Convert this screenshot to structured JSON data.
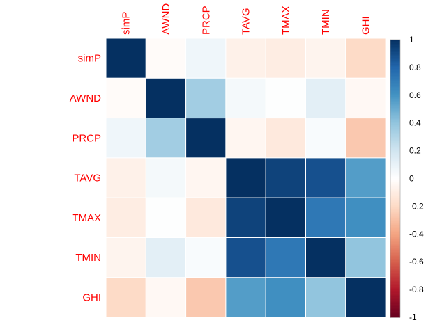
{
  "chart_data": {
    "type": "heatmap",
    "variables": [
      "simP",
      "AWND",
      "PRCP",
      "TAVG",
      "TMAX",
      "TMIN",
      "GHI"
    ],
    "matrix": [
      [
        1.0,
        -0.02,
        0.07,
        -0.08,
        -0.1,
        -0.06,
        -0.2
      ],
      [
        -0.02,
        1.0,
        0.35,
        0.05,
        0.01,
        0.12,
        -0.04
      ],
      [
        0.07,
        0.35,
        1.0,
        -0.05,
        -0.12,
        0.03,
        -0.27
      ],
      [
        -0.08,
        0.05,
        -0.05,
        1.0,
        0.93,
        0.88,
        0.56
      ],
      [
        -0.1,
        0.01,
        -0.12,
        0.93,
        1.0,
        0.72,
        0.62
      ],
      [
        -0.06,
        0.12,
        0.03,
        0.88,
        0.72,
        1.0,
        0.4
      ],
      [
        -0.2,
        -0.04,
        -0.27,
        0.56,
        0.62,
        0.4,
        1.0
      ]
    ],
    "colorbar": {
      "range": [
        -1,
        1
      ],
      "ticks": [
        "-1",
        "-0.8",
        "-0.6",
        "-0.4",
        "-0.2",
        "0",
        "0.2",
        "0.4",
        "0.6",
        "0.8",
        "1"
      ]
    },
    "label_color": "#ff0000",
    "grid": "white cell borders",
    "legend_placement": "right"
  }
}
